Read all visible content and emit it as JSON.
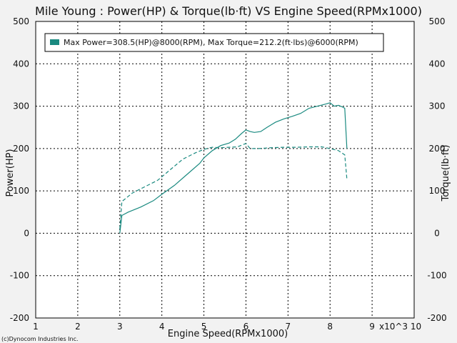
{
  "title": "Mile Young : Power(HP) & Torque(lb·ft) VS Engine Speed(RPMx1000)",
  "footer": "(c)Dynocom Industries Inc.",
  "legend_text": "Max Power=308.5(HP)@8000(RPM), Max Torque=212.2(ft·lbs)@6000(RPM)",
  "colors": {
    "series": "#1a8a80",
    "legend_swatch": "#1a8a80",
    "background": "#f2f2f2",
    "plot_bg": "#ffffff",
    "grid": "#000000"
  },
  "chart_data": {
    "type": "line",
    "title": "Mile Young : Power(HP) & Torque(lb·ft) VS Engine Speed(RPMx1000)",
    "xlabel": "Engine Speed(RPMx1000)",
    "ylabel": "Power(HP)",
    "y2label": "Torque(lb·ft)",
    "xlim": [
      1,
      10
    ],
    "ylim": [
      -200,
      500
    ],
    "y2lim": [
      -200,
      500
    ],
    "x_ticks": [
      "1",
      "2",
      "3",
      "4",
      "5",
      "6",
      "7",
      "8",
      "9"
    ],
    "x_tick_values": [
      1,
      2,
      3,
      4,
      5,
      6,
      7,
      8,
      9
    ],
    "x_extra_label": "x10^3 10",
    "y_ticks": [
      "500",
      "400",
      "300",
      "200",
      "100",
      "0",
      "-100",
      "-200"
    ],
    "y_tick_values": [
      500,
      400,
      300,
      200,
      100,
      0,
      -100,
      -200
    ],
    "grid": true,
    "legend_position": "top-left",
    "series": [
      {
        "name": "Power",
        "style": "solid",
        "axis": "left",
        "x": [
          3.0,
          3.05,
          3.2,
          3.5,
          3.8,
          4.0,
          4.3,
          4.6,
          4.9,
          5.0,
          5.2,
          5.4,
          5.6,
          5.75,
          5.9,
          6.0,
          6.1,
          6.2,
          6.35,
          6.5,
          6.7,
          6.9,
          7.1,
          7.3,
          7.5,
          7.7,
          7.9,
          8.0,
          8.1,
          8.2,
          8.3,
          8.35,
          8.4
        ],
        "y": [
          0,
          42,
          50,
          62,
          77,
          92,
          113,
          139,
          165,
          178,
          195,
          207,
          213,
          222,
          236,
          244,
          240,
          238,
          240,
          250,
          262,
          270,
          276,
          283,
          295,
          300,
          305,
          308,
          300,
          302,
          298,
          295,
          200
        ]
      },
      {
        "name": "Torque",
        "style": "dashed",
        "axis": "right",
        "x": [
          3.0,
          3.05,
          3.3,
          3.6,
          3.9,
          4.2,
          4.5,
          4.8,
          5.0,
          5.2,
          5.4,
          5.6,
          5.8,
          5.95,
          6.0,
          6.1,
          6.3,
          6.6,
          6.9,
          7.2,
          7.5,
          7.8,
          8.0,
          8.2,
          8.35,
          8.4
        ],
        "y": [
          10,
          75,
          95,
          110,
          125,
          150,
          175,
          190,
          198,
          203,
          202,
          203,
          204,
          210,
          212,
          200,
          200,
          202,
          203,
          203,
          204,
          204,
          200,
          195,
          185,
          128
        ]
      }
    ]
  }
}
